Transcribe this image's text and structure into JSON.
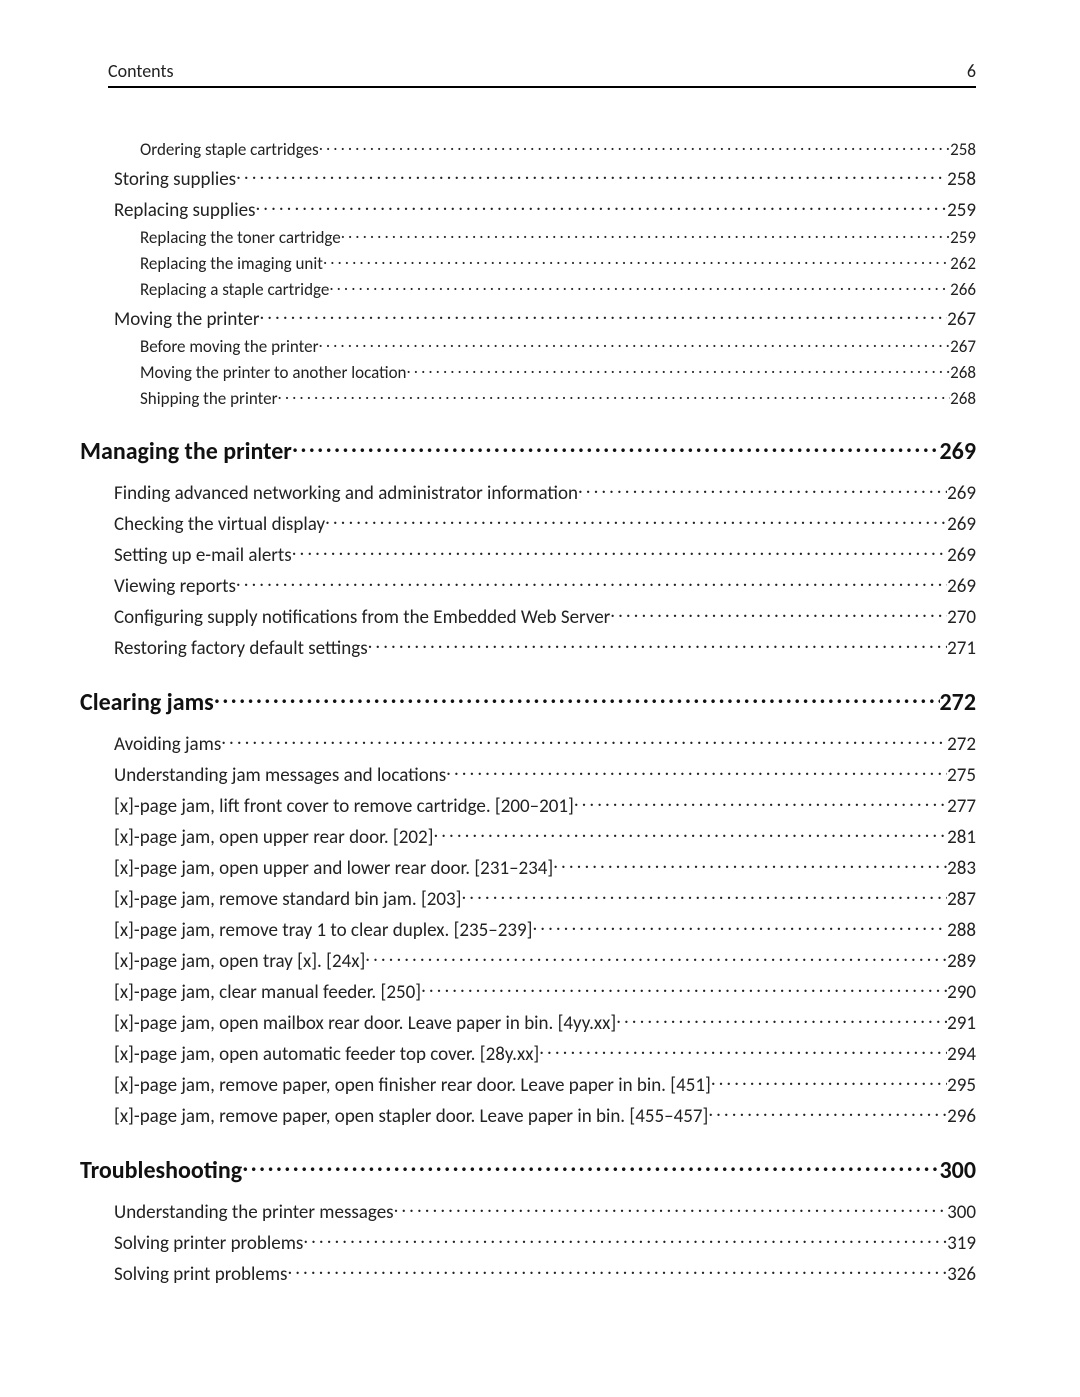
{
  "header": {
    "title": "Contents",
    "page": "6"
  },
  "toc": [
    {
      "type": "l2",
      "label": "Ordering staple cartridges",
      "page": "258",
      "first": true
    },
    {
      "type": "l1",
      "label": "Storing supplies",
      "page": "258"
    },
    {
      "type": "l1",
      "label": "Replacing supplies",
      "page": "259"
    },
    {
      "type": "l2",
      "label": "Replacing the toner cartridge",
      "page": "259"
    },
    {
      "type": "l2",
      "label": "Replacing the imaging unit",
      "page": "262"
    },
    {
      "type": "l2",
      "label": "Replacing a staple cartridge",
      "page": "266"
    },
    {
      "type": "l1",
      "label": "Moving the printer",
      "page": "267"
    },
    {
      "type": "l2",
      "label": "Before moving the printer",
      "page": "267"
    },
    {
      "type": "l2",
      "label": "Moving the printer to another location",
      "page": "268"
    },
    {
      "type": "l2",
      "label": "Shipping the printer",
      "page": "268"
    },
    {
      "type": "section",
      "label": "Managing the printer",
      "page": "269"
    },
    {
      "type": "l1",
      "label": "Finding advanced networking and administrator information",
      "page": "269",
      "first": true
    },
    {
      "type": "l1",
      "label": "Checking the virtual display",
      "page": "269"
    },
    {
      "type": "l1",
      "label": "Setting up e-mail alerts",
      "page": "269"
    },
    {
      "type": "l1",
      "label": "Viewing reports",
      "page": "269"
    },
    {
      "type": "l1",
      "label": "Configuring supply notifications from the Embedded Web Server",
      "page": "270"
    },
    {
      "type": "l1",
      "label": "Restoring factory default settings",
      "page": "271"
    },
    {
      "type": "section",
      "label": "Clearing jams",
      "page": "272"
    },
    {
      "type": "l1",
      "label": "Avoiding jams",
      "page": "272",
      "first": true
    },
    {
      "type": "l1",
      "label": "Understanding jam messages and locations",
      "page": "275"
    },
    {
      "type": "l1",
      "label": "[x]-page jam, lift front cover to remove cartridge. [200–201]",
      "page": "277"
    },
    {
      "type": "l1",
      "label": "[x]-page jam, open upper rear door. [202]",
      "page": "281"
    },
    {
      "type": "l1",
      "label": "[x]-page jam, open upper and lower rear door. [231–234]",
      "page": "283"
    },
    {
      "type": "l1",
      "label": "[x]-page jam, remove standard bin jam. [203]",
      "page": "287"
    },
    {
      "type": "l1",
      "label": "[x]-page jam, remove tray 1 to clear duplex. [235–239]",
      "page": "288"
    },
    {
      "type": "l1",
      "label": "[x]-page jam, open tray [x]. [24x]",
      "page": "289"
    },
    {
      "type": "l1",
      "label": "[x]-page jam, clear manual feeder. [250]",
      "page": "290"
    },
    {
      "type": "l1",
      "label": "[x]-page jam, open mailbox rear door. Leave paper in bin. [4yy.xx]",
      "page": "291"
    },
    {
      "type": "l1",
      "label": "[x]-page jam, open automatic feeder top cover. [28y.xx]",
      "page": "294"
    },
    {
      "type": "l1",
      "label": "[x]-page jam, remove paper, open finisher rear door. Leave paper in bin. [451]",
      "page": "295"
    },
    {
      "type": "l1",
      "label": "[x]-page jam, remove paper, open stapler door. Leave paper in bin. [455–457]",
      "page": "296"
    },
    {
      "type": "section",
      "label": "Troubleshooting",
      "page": "300"
    },
    {
      "type": "l1",
      "label": "Understanding the printer messages",
      "page": "300",
      "first": true
    },
    {
      "type": "l1",
      "label": "Solving printer problems",
      "page": "319"
    },
    {
      "type": "l1",
      "label": "Solving print problems",
      "page": "326"
    }
  ]
}
